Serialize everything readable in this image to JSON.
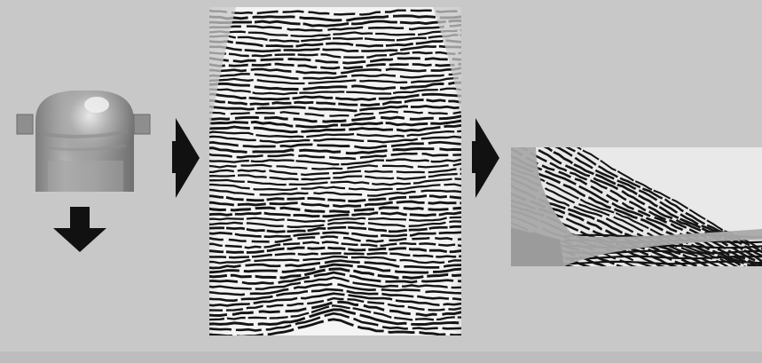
{
  "diagram": {
    "panels": [
      {
        "id": "finger-3d-scan"
      },
      {
        "id": "unrolled-fingerprint"
      },
      {
        "id": "fingerprint-crop"
      }
    ],
    "connectors": [
      {
        "from": "finger-3d-scan",
        "to": "unrolled-fingerprint",
        "direction": "right"
      },
      {
        "from": "unrolled-fingerprint",
        "to": "fingerprint-crop",
        "direction": "right"
      },
      {
        "from": "finger-3d-scan",
        "to": "below",
        "direction": "down"
      }
    ]
  },
  "colors": {
    "background": "#c8c8c8",
    "arrow": "#111111",
    "ridge": "#141414",
    "valley": "#f2f2f2",
    "finger_skin": "#9a9a9a",
    "crop_gray": "#a9a9a9"
  },
  "icons": {
    "right_arrow": "right-arrow-icon",
    "down_arrow": "down-arrow-icon"
  }
}
